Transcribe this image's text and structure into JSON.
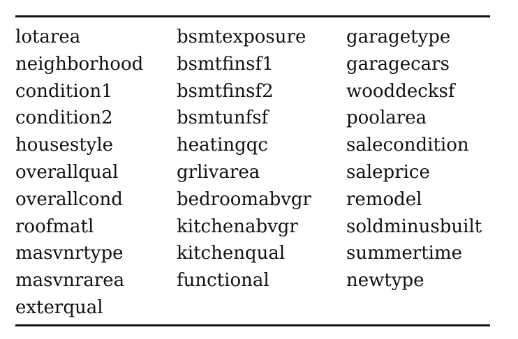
{
  "table": {
    "columns": [
      [
        "lotarea",
        "neighborhood",
        "condition1",
        "condition2",
        "housestyle",
        "overallqual",
        "overallcond",
        "roofmatl",
        "masvnrtype",
        "masvnrarea",
        "exterqual"
      ],
      [
        "bsmtexposure",
        "bsmtfinsf1",
        "bsmtfinsf2",
        "bsmtunfsf",
        "heatingqc",
        "grlivarea",
        "bedroomabvgr",
        "kitchenabvgr",
        "kitchenqual",
        "functional"
      ],
      [
        "garagetype",
        "garagecars",
        "wooddecksf",
        "poolarea",
        "salecondition",
        "saleprice",
        "remodel",
        "soldminusbuilt",
        "summertime",
        "newtype"
      ]
    ]
  }
}
